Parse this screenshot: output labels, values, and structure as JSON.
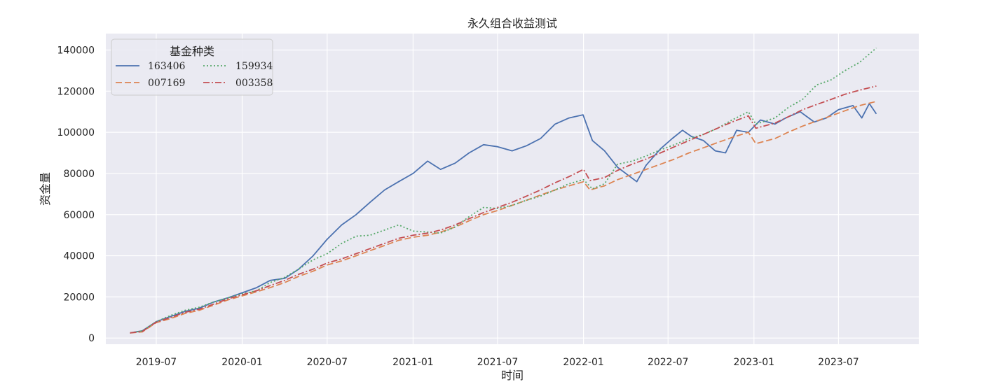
{
  "chart_data": {
    "type": "line",
    "title": "永久组合收益测试",
    "xlabel": "时间",
    "ylabel": "资金量",
    "xlim": [
      "2019-03-15",
      "2023-12-20"
    ],
    "ylim": [
      -3000,
      148000
    ],
    "yticks": [
      0,
      20000,
      40000,
      60000,
      80000,
      100000,
      120000,
      140000
    ],
    "xticks": [
      "2019-07",
      "2020-01",
      "2020-07",
      "2021-01",
      "2021-07",
      "2022-01",
      "2022-07",
      "2023-01",
      "2023-07"
    ],
    "grid": true,
    "background": "#eaeaf2",
    "legend": {
      "title": "基金种类",
      "placement": "top-left",
      "columns": 2
    },
    "series": [
      {
        "name": "163406",
        "color": "#4c72b0",
        "style": "solid",
        "points": [
          [
            "2019-05-06",
            2500
          ],
          [
            "2019-06-01",
            3500
          ],
          [
            "2019-07-01",
            8000
          ],
          [
            "2019-08-01",
            10500
          ],
          [
            "2019-09-01",
            13000
          ],
          [
            "2019-10-01",
            14500
          ],
          [
            "2019-11-01",
            17500
          ],
          [
            "2019-12-01",
            19500
          ],
          [
            "2020-01-01",
            22000
          ],
          [
            "2020-02-01",
            24500
          ],
          [
            "2020-03-01",
            28000
          ],
          [
            "2020-04-01",
            29000
          ],
          [
            "2020-05-01",
            33500
          ],
          [
            "2020-06-01",
            40000
          ],
          [
            "2020-07-01",
            48000
          ],
          [
            "2020-08-01",
            55000
          ],
          [
            "2020-09-01",
            60000
          ],
          [
            "2020-10-01",
            66000
          ],
          [
            "2020-11-01",
            72000
          ],
          [
            "2020-12-01",
            76000
          ],
          [
            "2021-01-01",
            80000
          ],
          [
            "2021-02-01",
            86000
          ],
          [
            "2021-03-01",
            82000
          ],
          [
            "2021-04-01",
            85000
          ],
          [
            "2021-05-01",
            90000
          ],
          [
            "2021-06-01",
            94000
          ],
          [
            "2021-07-01",
            93000
          ],
          [
            "2021-08-01",
            91000
          ],
          [
            "2021-09-01",
            93500
          ],
          [
            "2021-10-01",
            97000
          ],
          [
            "2021-11-01",
            104000
          ],
          [
            "2021-12-01",
            107000
          ],
          [
            "2021-12-31",
            108500
          ],
          [
            "2022-01-20",
            96000
          ],
          [
            "2022-02-15",
            91000
          ],
          [
            "2022-03-15",
            83000
          ],
          [
            "2022-04-25",
            76000
          ],
          [
            "2022-05-15",
            84000
          ],
          [
            "2022-06-15",
            92000
          ],
          [
            "2022-07-10",
            97000
          ],
          [
            "2022-08-01",
            101000
          ],
          [
            "2022-08-20",
            98000
          ],
          [
            "2022-09-15",
            96000
          ],
          [
            "2022-10-10",
            91000
          ],
          [
            "2022-11-01",
            90000
          ],
          [
            "2022-11-25",
            101000
          ],
          [
            "2022-12-20",
            100000
          ],
          [
            "2023-01-15",
            106000
          ],
          [
            "2023-02-15",
            104000
          ],
          [
            "2023-03-10",
            107000
          ],
          [
            "2023-04-10",
            110000
          ],
          [
            "2023-05-10",
            105000
          ],
          [
            "2023-06-05",
            107000
          ],
          [
            "2023-07-01",
            111000
          ],
          [
            "2023-08-01",
            113000
          ],
          [
            "2023-08-20",
            107000
          ],
          [
            "2023-09-05",
            114000
          ],
          [
            "2023-09-20",
            109000
          ]
        ]
      },
      {
        "name": "007169",
        "color": "#dd8452",
        "style": "dashed",
        "points": [
          [
            "2019-05-06",
            2500
          ],
          [
            "2019-06-01",
            3000
          ],
          [
            "2019-07-01",
            7500
          ],
          [
            "2019-08-01",
            9500
          ],
          [
            "2019-09-01",
            12000
          ],
          [
            "2019-10-01",
            13500
          ],
          [
            "2019-11-01",
            16000
          ],
          [
            "2019-12-01",
            18500
          ],
          [
            "2020-01-01",
            20500
          ],
          [
            "2020-02-01",
            22500
          ],
          [
            "2020-03-01",
            24500
          ],
          [
            "2020-04-01",
            27000
          ],
          [
            "2020-05-01",
            30000
          ],
          [
            "2020-06-01",
            32500
          ],
          [
            "2020-07-01",
            35500
          ],
          [
            "2020-08-01",
            37500
          ],
          [
            "2020-09-01",
            40000
          ],
          [
            "2020-10-01",
            42500
          ],
          [
            "2020-11-01",
            45000
          ],
          [
            "2020-12-01",
            47500
          ],
          [
            "2021-01-01",
            49000
          ],
          [
            "2021-02-01",
            50000
          ],
          [
            "2021-03-01",
            51500
          ],
          [
            "2021-04-01",
            54000
          ],
          [
            "2021-05-01",
            57000
          ],
          [
            "2021-06-01",
            60000
          ],
          [
            "2021-07-01",
            62000
          ],
          [
            "2021-08-01",
            64500
          ],
          [
            "2021-09-01",
            67000
          ],
          [
            "2021-10-01",
            69500
          ],
          [
            "2021-11-01",
            72000
          ],
          [
            "2021-12-01",
            74000
          ],
          [
            "2022-01-01",
            76000
          ],
          [
            "2022-01-15",
            72000
          ],
          [
            "2022-02-15",
            74000
          ],
          [
            "2022-03-15",
            77000
          ],
          [
            "2022-04-15",
            79500
          ],
          [
            "2022-05-15",
            82000
          ],
          [
            "2022-06-15",
            84500
          ],
          [
            "2022-07-15",
            87000
          ],
          [
            "2022-08-15",
            90000
          ],
          [
            "2022-09-15",
            92500
          ],
          [
            "2022-10-15",
            95000
          ],
          [
            "2022-11-15",
            97500
          ],
          [
            "2022-12-20",
            100000
          ],
          [
            "2023-01-05",
            94500
          ],
          [
            "2023-02-15",
            97000
          ],
          [
            "2023-03-15",
            100000
          ],
          [
            "2023-04-15",
            103000
          ],
          [
            "2023-05-15",
            105500
          ],
          [
            "2023-06-15",
            108000
          ],
          [
            "2023-07-15",
            110500
          ],
          [
            "2023-08-15",
            113000
          ],
          [
            "2023-09-20",
            115000
          ]
        ]
      },
      {
        "name": "159934",
        "color": "#55a868",
        "style": "dotted",
        "points": [
          [
            "2019-05-06",
            2500
          ],
          [
            "2019-06-01",
            3500
          ],
          [
            "2019-07-01",
            8000
          ],
          [
            "2019-08-01",
            11000
          ],
          [
            "2019-09-01",
            13500
          ],
          [
            "2019-10-01",
            15000
          ],
          [
            "2019-11-01",
            17500
          ],
          [
            "2019-12-01",
            19500
          ],
          [
            "2020-01-01",
            21500
          ],
          [
            "2020-02-01",
            23000
          ],
          [
            "2020-03-01",
            27000
          ],
          [
            "2020-04-01",
            29500
          ],
          [
            "2020-05-01",
            33500
          ],
          [
            "2020-06-01",
            38000
          ],
          [
            "2020-07-01",
            41000
          ],
          [
            "2020-08-01",
            46000
          ],
          [
            "2020-09-01",
            49500
          ],
          [
            "2020-10-01",
            50000
          ],
          [
            "2020-11-01",
            52500
          ],
          [
            "2020-12-01",
            55000
          ],
          [
            "2021-01-01",
            52000
          ],
          [
            "2021-02-01",
            51500
          ],
          [
            "2021-03-01",
            51000
          ],
          [
            "2021-04-01",
            54000
          ],
          [
            "2021-05-01",
            59000
          ],
          [
            "2021-06-01",
            63500
          ],
          [
            "2021-07-01",
            63000
          ],
          [
            "2021-08-01",
            64500
          ],
          [
            "2021-09-01",
            67000
          ],
          [
            "2021-10-01",
            69000
          ],
          [
            "2021-11-01",
            72000
          ],
          [
            "2021-12-01",
            75000
          ],
          [
            "2022-01-01",
            77000
          ],
          [
            "2022-01-20",
            72500
          ],
          [
            "2022-02-15",
            75000
          ],
          [
            "2022-03-15",
            84500
          ],
          [
            "2022-04-15",
            86000
          ],
          [
            "2022-05-15",
            88500
          ],
          [
            "2022-06-15",
            91500
          ],
          [
            "2022-07-15",
            94000
          ],
          [
            "2022-08-15",
            97000
          ],
          [
            "2022-09-15",
            99000
          ],
          [
            "2022-10-15",
            102000
          ],
          [
            "2022-11-15",
            106000
          ],
          [
            "2022-12-20",
            110000
          ],
          [
            "2023-01-05",
            104000
          ],
          [
            "2023-02-15",
            107000
          ],
          [
            "2023-03-15",
            112000
          ],
          [
            "2023-04-15",
            116000
          ],
          [
            "2023-05-15",
            123000
          ],
          [
            "2023-06-15",
            125500
          ],
          [
            "2023-07-15",
            130000
          ],
          [
            "2023-08-15",
            134000
          ],
          [
            "2023-09-20",
            141000
          ]
        ]
      },
      {
        "name": "003358",
        "color": "#c44e52",
        "style": "dashdot",
        "points": [
          [
            "2019-05-06",
            2500
          ],
          [
            "2019-06-01",
            3200
          ],
          [
            "2019-07-01",
            7700
          ],
          [
            "2019-08-01",
            10000
          ],
          [
            "2019-09-01",
            12500
          ],
          [
            "2019-10-01",
            14000
          ],
          [
            "2019-11-01",
            16500
          ],
          [
            "2019-12-01",
            19000
          ],
          [
            "2020-01-01",
            21000
          ],
          [
            "2020-02-01",
            23000
          ],
          [
            "2020-03-01",
            25500
          ],
          [
            "2020-04-01",
            28000
          ],
          [
            "2020-05-01",
            31000
          ],
          [
            "2020-06-01",
            33500
          ],
          [
            "2020-07-01",
            36500
          ],
          [
            "2020-08-01",
            38500
          ],
          [
            "2020-09-01",
            41000
          ],
          [
            "2020-10-01",
            43500
          ],
          [
            "2020-11-01",
            46000
          ],
          [
            "2020-12-01",
            48500
          ],
          [
            "2021-01-01",
            50000
          ],
          [
            "2021-02-01",
            51000
          ],
          [
            "2021-03-01",
            52500
          ],
          [
            "2021-04-01",
            55000
          ],
          [
            "2021-05-01",
            58000
          ],
          [
            "2021-06-01",
            61000
          ],
          [
            "2021-07-01",
            63500
          ],
          [
            "2021-08-01",
            66000
          ],
          [
            "2021-09-01",
            69000
          ],
          [
            "2021-10-01",
            72000
          ],
          [
            "2021-11-01",
            75500
          ],
          [
            "2021-12-01",
            78500
          ],
          [
            "2022-01-01",
            82000
          ],
          [
            "2022-01-15",
            76500
          ],
          [
            "2022-02-15",
            78000
          ],
          [
            "2022-03-15",
            81500
          ],
          [
            "2022-04-15",
            84500
          ],
          [
            "2022-05-15",
            87000
          ],
          [
            "2022-06-15",
            90000
          ],
          [
            "2022-07-15",
            93000
          ],
          [
            "2022-08-15",
            96000
          ],
          [
            "2022-09-15",
            99000
          ],
          [
            "2022-10-15",
            102000
          ],
          [
            "2022-11-15",
            105000
          ],
          [
            "2022-12-20",
            108000
          ],
          [
            "2023-01-05",
            102000
          ],
          [
            "2023-02-15",
            104500
          ],
          [
            "2023-03-15",
            107500
          ],
          [
            "2023-04-15",
            111000
          ],
          [
            "2023-05-15",
            113500
          ],
          [
            "2023-06-15",
            116000
          ],
          [
            "2023-07-15",
            118500
          ],
          [
            "2023-08-15",
            120500
          ],
          [
            "2023-09-20",
            122500
          ]
        ]
      }
    ]
  }
}
